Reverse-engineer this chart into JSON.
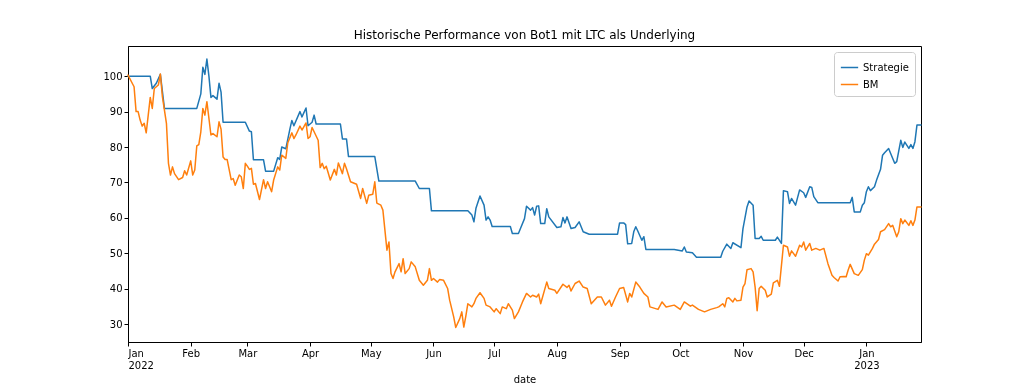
{
  "chart_data": {
    "type": "line",
    "title": "Historische Performance von Bot1 mit LTC als Underlying",
    "xlabel": "date",
    "legend": "top right",
    "line_style": "solid",
    "grid": false,
    "xlim": [
      "2022-01-01",
      "2023-01-28"
    ],
    "xticks": [
      {
        "value": "2022-01",
        "label": "Jan\n2022"
      },
      {
        "value": "2022-02",
        "label": "Feb"
      },
      {
        "value": "2022-03",
        "label": "Mar"
      },
      {
        "value": "2022-04",
        "label": "Apr"
      },
      {
        "value": "2022-05",
        "label": "May"
      },
      {
        "value": "2022-06",
        "label": "Jun"
      },
      {
        "value": "2022-07",
        "label": "Jul"
      },
      {
        "value": "2022-08",
        "label": "Aug"
      },
      {
        "value": "2022-09",
        "label": "Sep"
      },
      {
        "value": "2022-10",
        "label": "Oct"
      },
      {
        "value": "2022-11",
        "label": "Nov"
      },
      {
        "value": "2022-12",
        "label": "Dec"
      },
      {
        "value": "2023-01",
        "label": "Jan\n2023"
      }
    ],
    "ylim": [
      25,
      108.5
    ],
    "yticks": [
      30,
      40,
      50,
      60,
      70,
      80,
      90,
      100
    ],
    "series": [
      {
        "name": "Strategie",
        "color": "#1f77b4",
        "x": [
          "2022-01-01",
          "2022-01-12",
          "2022-01-13",
          "2022-01-15",
          "2022-01-17",
          "2022-01-19",
          "2022-02-04",
          "2022-02-06",
          "2022-02-07",
          "2022-02-08",
          "2022-02-09",
          "2022-02-10",
          "2022-02-11",
          "2022-02-12",
          "2022-02-14",
          "2022-02-15",
          "2022-02-16",
          "2022-02-17",
          "2022-02-28",
          "2022-03-02",
          "2022-03-03",
          "2022-03-04",
          "2022-03-09",
          "2022-03-10",
          "2022-03-14",
          "2022-03-16",
          "2022-03-17",
          "2022-03-18",
          "2022-03-20",
          "2022-03-22",
          "2022-03-23",
          "2022-03-24",
          "2022-03-27",
          "2022-03-28",
          "2022-03-30",
          "2022-03-31",
          "2022-04-02",
          "2022-04-03",
          "2022-04-04",
          "2022-04-16",
          "2022-04-17",
          "2022-04-19",
          "2022-04-20",
          "2022-05-03",
          "2022-05-05",
          "2022-05-23",
          "2022-05-25",
          "2022-05-30",
          "2022-05-31",
          "2022-06-18",
          "2022-06-20",
          "2022-06-21",
          "2022-06-22",
          "2022-06-24",
          "2022-06-26",
          "2022-06-27",
          "2022-06-28",
          "2022-06-29",
          "2022-06-30",
          "2022-07-09",
          "2022-07-10",
          "2022-07-13",
          "2022-07-14",
          "2022-07-16",
          "2022-07-17",
          "2022-07-19",
          "2022-07-20",
          "2022-07-21",
          "2022-07-22",
          "2022-07-23",
          "2022-07-24",
          "2022-07-26",
          "2022-07-27",
          "2022-07-28",
          "2022-08-01",
          "2022-08-03",
          "2022-08-04",
          "2022-08-05",
          "2022-08-06",
          "2022-08-08",
          "2022-08-10",
          "2022-08-12",
          "2022-08-14",
          "2022-08-17",
          "2022-08-31",
          "2022-09-01",
          "2022-09-03",
          "2022-09-04",
          "2022-09-05",
          "2022-09-07",
          "2022-09-08",
          "2022-09-09",
          "2022-09-10",
          "2022-09-12",
          "2022-09-13",
          "2022-09-14",
          "2022-09-28",
          "2022-10-02",
          "2022-10-03",
          "2022-10-04",
          "2022-10-07",
          "2022-10-09",
          "2022-10-21",
          "2022-10-22",
          "2022-10-24",
          "2022-10-26",
          "2022-10-27",
          "2022-10-31",
          "2022-11-01",
          "2022-11-03",
          "2022-11-04",
          "2022-11-06",
          "2022-11-07",
          "2022-11-09",
          "2022-11-10",
          "2022-11-11",
          "2022-11-17",
          "2022-11-18",
          "2022-11-20",
          "2022-11-21",
          "2022-11-23",
          "2022-11-24",
          "2022-11-25",
          "2022-11-27",
          "2022-11-29",
          "2022-12-01",
          "2022-12-02",
          "2022-12-04",
          "2022-12-05",
          "2022-12-06",
          "2022-12-08",
          "2022-12-24",
          "2022-12-25",
          "2022-12-26",
          "2022-12-29",
          "2022-12-30",
          "2022-12-31",
          "2023-01-01",
          "2023-01-02",
          "2023-01-03",
          "2023-01-05",
          "2023-01-06",
          "2023-01-08",
          "2023-01-09",
          "2023-01-10",
          "2023-01-12",
          "2023-01-13",
          "2023-01-15",
          "2023-01-16",
          "2023-01-18",
          "2023-01-19",
          "2023-01-20",
          "2023-01-22",
          "2023-01-23",
          "2023-01-24",
          "2023-01-25",
          "2023-01-26",
          "2023-01-28"
        ],
        "values": [
          100,
          100,
          96.5,
          98,
          100.5,
          90.9,
          90.9,
          95,
          102.5,
          100.5,
          104.8,
          100,
          94,
          94.5,
          93.5,
          98,
          95.5,
          87,
          87,
          84.5,
          84.3,
          76.4,
          76.4,
          73.2,
          73.2,
          77,
          76.5,
          80,
          79.5,
          85,
          87.5,
          86,
          90,
          88.5,
          91,
          86,
          87,
          89,
          86.5,
          86.5,
          82.3,
          82.3,
          77.3,
          77.3,
          70.4,
          70.4,
          68.3,
          68.3,
          62,
          62,
          60.8,
          58.9,
          62.7,
          66.2,
          63.6,
          59.4,
          60.3,
          59.4,
          57.6,
          57.6,
          55.6,
          55.6,
          57,
          59.8,
          63.3,
          62.2,
          62.9,
          60.8,
          63.3,
          63.4,
          58.4,
          58.4,
          62.6,
          60.3,
          57.3,
          57.5,
          60.1,
          58.6,
          60.3,
          57,
          57.3,
          58.9,
          56.1,
          55.4,
          55.4,
          58.6,
          58.6,
          58.1,
          52.7,
          52.8,
          56.1,
          57.5,
          56.3,
          53.7,
          54.7,
          51.1,
          51.1,
          50.7,
          51.8,
          50.4,
          50.2,
          48.9,
          48.9,
          50.6,
          52.6,
          51.4,
          53,
          51.6,
          57,
          63.1,
          64.8,
          63.6,
          54.2,
          54.2,
          54.8,
          53.7,
          53.7,
          54.6,
          52.8,
          67.7,
          67.4,
          64.1,
          65.5,
          63.6,
          67.9,
          67.1,
          65.8,
          68.8,
          68.6,
          66,
          64.3,
          64.3,
          65.8,
          61.7,
          61.7,
          63.6,
          64.3,
          67.4,
          68.8,
          67.7,
          68.8,
          70.6,
          73.7,
          77.7,
          78.4,
          79.6,
          78.2,
          75.4,
          75.9,
          81.9,
          79.9,
          81.4,
          79.6,
          80.7,
          79.6,
          81.5,
          86.2,
          86.2
        ]
      },
      {
        "name": "BM",
        "color": "#ff7f0e",
        "x": [
          "2022-01-01",
          "2022-01-04",
          "2022-01-05",
          "2022-01-06",
          "2022-01-07",
          "2022-01-08",
          "2022-01-09",
          "2022-01-10",
          "2022-01-12",
          "2022-01-13",
          "2022-01-14",
          "2022-01-16",
          "2022-01-17",
          "2022-01-18",
          "2022-01-20",
          "2022-01-21",
          "2022-01-22",
          "2022-01-23",
          "2022-01-24",
          "2022-01-26",
          "2022-01-28",
          "2022-01-29",
          "2022-01-30",
          "2022-02-01",
          "2022-02-02",
          "2022-02-03",
          "2022-02-04",
          "2022-02-05",
          "2022-02-06",
          "2022-02-07",
          "2022-02-08",
          "2022-02-09",
          "2022-02-11",
          "2022-02-12",
          "2022-02-14",
          "2022-02-15",
          "2022-02-16",
          "2022-02-17",
          "2022-02-18",
          "2022-02-19",
          "2022-02-21",
          "2022-02-22",
          "2022-02-23",
          "2022-02-25",
          "2022-02-26",
          "2022-02-27",
          "2022-02-28",
          "2022-03-01",
          "2022-03-02",
          "2022-03-03",
          "2022-03-04",
          "2022-03-05",
          "2022-03-07",
          "2022-03-09",
          "2022-03-10",
          "2022-03-11",
          "2022-03-13",
          "2022-03-14",
          "2022-03-16",
          "2022-03-17",
          "2022-03-18",
          "2022-03-20",
          "2022-03-21",
          "2022-03-23",
          "2022-03-24",
          "2022-03-25",
          "2022-03-27",
          "2022-03-28",
          "2022-03-30",
          "2022-03-31",
          "2022-04-01",
          "2022-04-02",
          "2022-04-05",
          "2022-04-06",
          "2022-04-07",
          "2022-04-08",
          "2022-04-09",
          "2022-04-11",
          "2022-04-13",
          "2022-04-14",
          "2022-04-15",
          "2022-04-17",
          "2022-04-18",
          "2022-04-19",
          "2022-04-21",
          "2022-04-24",
          "2022-04-26",
          "2022-04-27",
          "2022-04-29",
          "2022-04-30",
          "2022-05-02",
          "2022-05-03",
          "2022-05-04",
          "2022-05-06",
          "2022-05-07",
          "2022-05-09",
          "2022-05-10",
          "2022-05-11",
          "2022-05-12",
          "2022-05-13",
          "2022-05-15",
          "2022-05-16",
          "2022-05-17",
          "2022-05-18",
          "2022-05-20",
          "2022-05-21",
          "2022-05-23",
          "2022-05-25",
          "2022-05-27",
          "2022-05-29",
          "2022-05-30",
          "2022-05-31",
          "2022-06-01",
          "2022-06-03",
          "2022-06-04",
          "2022-06-06",
          "2022-06-08",
          "2022-06-09",
          "2022-06-11",
          "2022-06-12",
          "2022-06-14",
          "2022-06-15",
          "2022-06-16",
          "2022-06-17",
          "2022-06-18",
          "2022-06-20",
          "2022-06-21",
          "2022-06-22",
          "2022-06-24",
          "2022-06-26",
          "2022-06-27",
          "2022-06-29",
          "2022-07-01",
          "2022-07-02",
          "2022-07-04",
          "2022-07-05",
          "2022-07-07",
          "2022-07-08",
          "2022-07-10",
          "2022-07-11",
          "2022-07-13",
          "2022-07-15",
          "2022-07-17",
          "2022-07-19",
          "2022-07-20",
          "2022-07-22",
          "2022-07-23",
          "2022-07-24",
          "2022-07-27",
          "2022-07-28",
          "2022-07-31",
          "2022-08-01",
          "2022-08-04",
          "2022-08-06",
          "2022-08-07",
          "2022-08-08",
          "2022-08-10",
          "2022-08-12",
          "2022-08-14",
          "2022-08-16",
          "2022-08-18",
          "2022-08-21",
          "2022-08-23",
          "2022-08-25",
          "2022-08-27",
          "2022-08-28",
          "2022-08-30",
          "2022-09-01",
          "2022-09-03",
          "2022-09-05",
          "2022-09-06",
          "2022-09-07",
          "2022-09-09",
          "2022-09-11",
          "2022-09-13",
          "2022-09-15",
          "2022-09-16",
          "2022-09-20",
          "2022-09-22",
          "2022-09-24",
          "2022-09-28",
          "2022-10-01",
          "2022-10-03",
          "2022-10-06",
          "2022-10-07",
          "2022-10-10",
          "2022-10-13",
          "2022-10-16",
          "2022-10-19",
          "2022-10-20",
          "2022-10-22",
          "2022-10-23",
          "2022-10-24",
          "2022-10-25",
          "2022-10-27",
          "2022-10-28",
          "2022-10-29",
          "2022-10-31",
          "2022-11-01",
          "2022-11-02",
          "2022-11-03",
          "2022-11-05",
          "2022-11-06",
          "2022-11-07",
          "2022-11-08",
          "2022-11-09",
          "2022-11-10",
          "2022-11-12",
          "2022-11-13",
          "2022-11-15",
          "2022-11-16",
          "2022-11-18",
          "2022-11-19",
          "2022-11-21",
          "2022-11-23",
          "2022-11-24",
          "2022-11-25",
          "2022-11-27",
          "2022-11-29",
          "2022-11-30",
          "2022-12-01",
          "2022-12-02",
          "2022-12-04",
          "2022-12-05",
          "2022-12-07",
          "2022-12-09",
          "2022-12-11",
          "2022-12-13",
          "2022-12-15",
          "2022-12-16",
          "2022-12-18",
          "2022-12-19",
          "2022-12-21",
          "2022-12-22",
          "2022-12-23",
          "2022-12-24",
          "2022-12-26",
          "2022-12-28",
          "2022-12-30",
          "2022-12-31",
          "2023-01-01",
          "2023-01-02",
          "2023-01-04",
          "2023-01-05",
          "2023-01-07",
          "2023-01-08",
          "2023-01-10",
          "2023-01-12",
          "2023-01-13",
          "2023-01-14",
          "2023-01-16",
          "2023-01-17",
          "2023-01-18",
          "2023-01-19",
          "2023-01-20",
          "2023-01-22",
          "2023-01-23",
          "2023-01-24",
          "2023-01-25",
          "2023-01-26",
          "2023-01-28"
        ],
        "values": [
          100.3,
          97,
          90,
          90,
          87.6,
          85.9,
          86.7,
          84,
          94,
          90.9,
          96.5,
          97.5,
          100.6,
          94.2,
          86.7,
          75.4,
          72.1,
          74.4,
          72.5,
          70.8,
          71.4,
          73.3,
          72.1,
          76.1,
          72.1,
          73.5,
          80.3,
          80.7,
          84.3,
          90.9,
          89,
          92.8,
          83.4,
          83.8,
          82.9,
          87.1,
          85,
          77.2,
          76.5,
          76.5,
          70.8,
          71.1,
          69.2,
          72.1,
          71.6,
          68.3,
          75.4,
          74.6,
          73.7,
          74,
          69.5,
          69.7,
          65.2,
          70.8,
          68.3,
          70.2,
          67.4,
          70.7,
          74.4,
          73.5,
          77.7,
          76.8,
          81.2,
          84,
          82.4,
          83.4,
          85.9,
          84.8,
          86.8,
          82.4,
          82.9,
          85.5,
          81.9,
          74.2,
          75.4,
          73.9,
          74.6,
          70.7,
          73.7,
          72.1,
          75.5,
          72.5,
          75.4,
          73.9,
          70.2,
          69.5,
          65.5,
          68.3,
          64.1,
          66.4,
          66.7,
          70.2,
          64.2,
          63.6,
          62.2,
          50.9,
          53.2,
          44.3,
          42.9,
          44.8,
          47.1,
          44.8,
          48.5,
          44.3,
          45.7,
          47.6,
          46.2,
          42.4,
          41,
          42.4,
          45.7,
          42.4,
          42.9,
          41.9,
          42.6,
          42.4,
          40.1,
          36.8,
          32.1,
          29.1,
          31.6,
          33.5,
          29.2,
          32.3,
          35.8,
          34.9,
          35.8,
          37.3,
          38.9,
          37.3,
          35.4,
          34.9,
          33.5,
          34.4,
          33,
          34.9,
          34.4,
          35.8,
          34,
          31.6,
          33.5,
          36.3,
          38.7,
          37.7,
          38.2,
          37.7,
          38.5,
          35.8,
          41.9,
          40.1,
          39.6,
          38.7,
          41.3,
          40.4,
          41,
          39.4,
          41.5,
          42.2,
          40.5,
          40.1,
          35.8,
          37.7,
          37.7,
          35.4,
          36.8,
          35.1,
          37.7,
          40.1,
          40.4,
          36.3,
          38.7,
          37.7,
          41.9,
          40.5,
          38.7,
          37.7,
          34.9,
          34.2,
          36.3,
          34.9,
          35.4,
          34.2,
          36.3,
          35.1,
          35.4,
          34.2,
          33.5,
          34.2,
          34.7,
          34.9,
          35.8,
          34.9,
          37.3,
          37.5,
          36.3,
          37.3,
          36.6,
          36.8,
          40.5,
          41.5,
          45.4,
          45.7,
          44.8,
          40.5,
          33.8,
          40.1,
          40.7,
          39.6,
          37.7,
          38.5,
          41.7,
          42.4,
          40.7,
          52.3,
          51.8,
          49.2,
          50.7,
          49.2,
          52.3,
          51.8,
          53.2,
          50.9,
          52.8,
          50.9,
          51.4,
          50.9,
          51.4,
          47.1,
          43.8,
          43.2,
          42.2,
          43.4,
          43.5,
          43.4,
          45.3,
          46.9,
          44.3,
          43.8,
          45.4,
          48.1,
          49.9,
          49.5,
          51.4,
          52.6,
          53.9,
          56.1,
          56.7,
          58.4,
          57.5,
          57.9,
          54.7,
          56.1,
          59.8,
          58.4,
          59.4,
          57.9,
          59.2,
          57.9,
          59.4,
          63.1,
          63.1
        ]
      }
    ]
  }
}
